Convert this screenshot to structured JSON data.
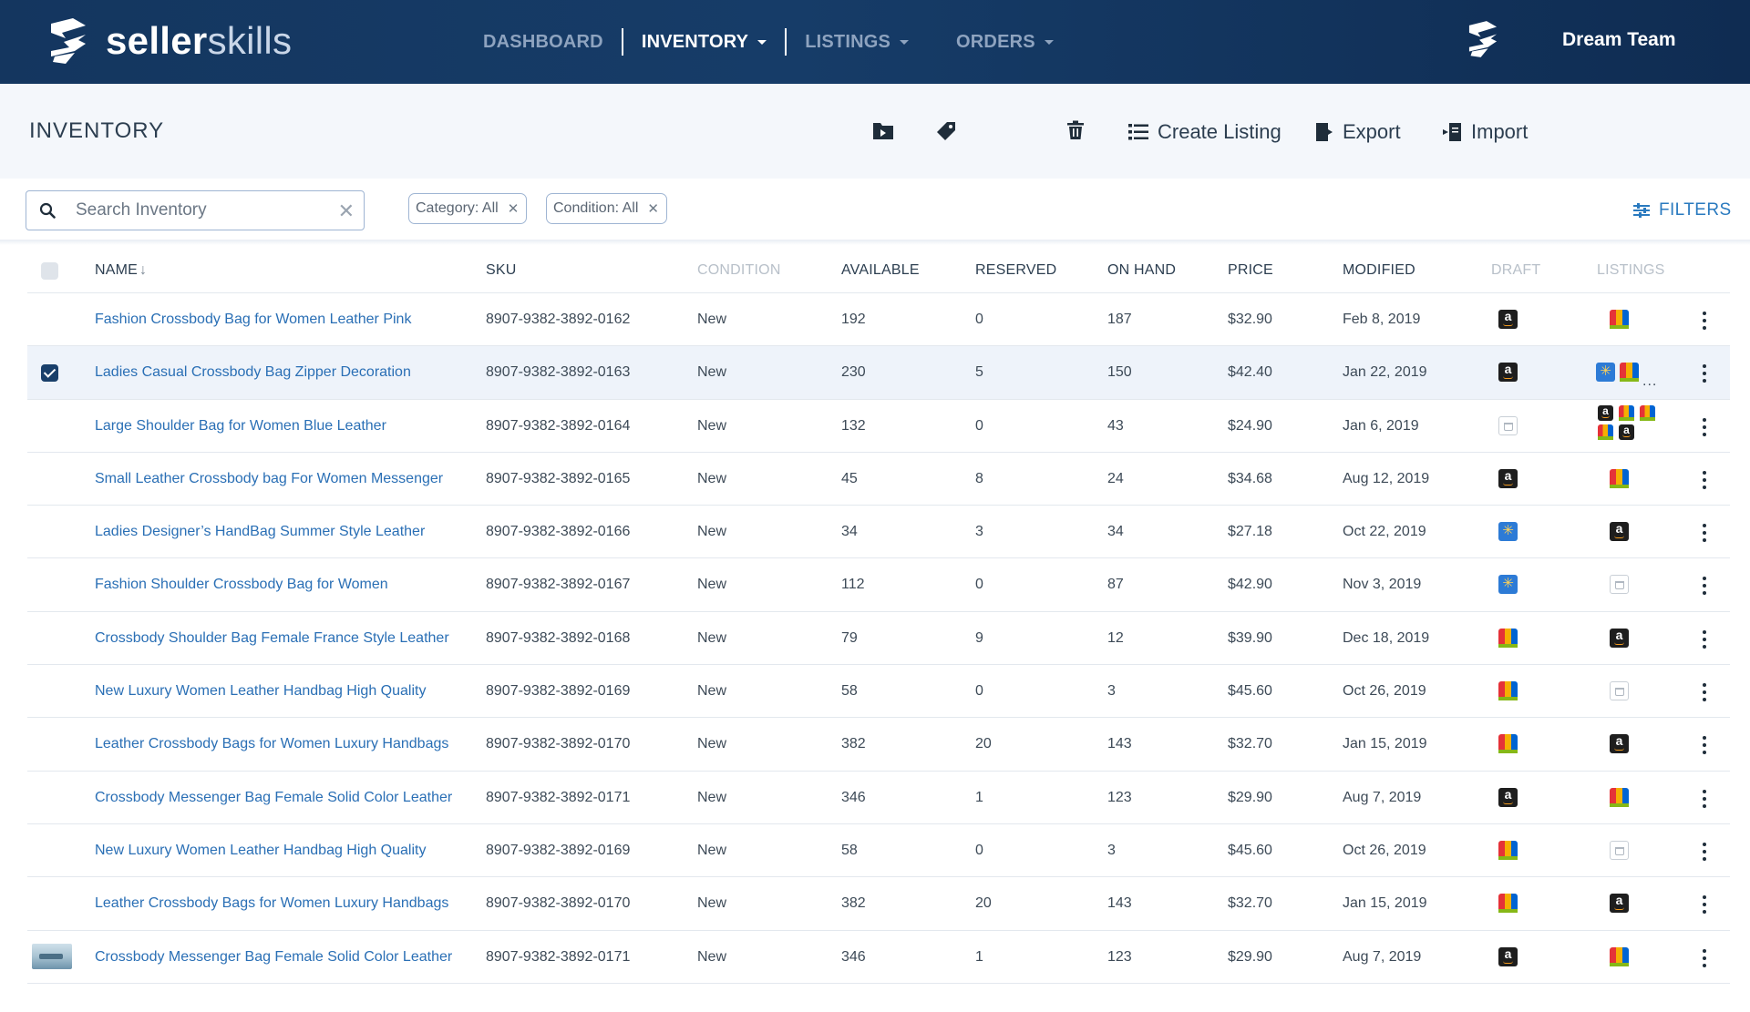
{
  "app": {
    "logo_bold": "seller",
    "logo_light": "skills",
    "team_name": "Dream Team"
  },
  "nav": {
    "dashboard": "DASHBOARD",
    "inventory": "INVENTORY",
    "listings": "LISTINGS",
    "orders": "ORDERS",
    "active": "inventory"
  },
  "toolbar": {
    "page_title": "INVENTORY",
    "create_listing_label": "Create Listing",
    "export_label": "Export",
    "import_label": "Import",
    "icons": [
      "folder-icon",
      "tag-icon",
      "trash-icon",
      "list-icon",
      "export-icon",
      "import-icon"
    ]
  },
  "search": {
    "placeholder": "Search Inventory",
    "value": ""
  },
  "filter_chips": [
    {
      "label": "Category: All"
    },
    {
      "label": "Condition: All"
    }
  ],
  "filters_label": "FILTERS",
  "table": {
    "columns": {
      "name": "NAME",
      "sku": "SKU",
      "condition": "CONDITION",
      "available": "AVAILABLE",
      "reserved": "RESERVED",
      "on_hand": "ON HAND",
      "price": "PRICE",
      "modified": "MODIFIED",
      "draft": "DRAFT",
      "listings": "LISTINGS"
    },
    "sort": {
      "column": "name",
      "direction": "down"
    },
    "rows": [
      {
        "name": "Fashion Crossbody Bag for Women Leather Pink",
        "sku": "8907-9382-3892-0162",
        "condition": "New",
        "available": "192",
        "reserved": "0",
        "on_hand": "187",
        "price": "$32.90",
        "modified": "Feb 8, 2019",
        "checked": false,
        "thumb": false,
        "draft": "amazon",
        "listings": [
          "ebay"
        ]
      },
      {
        "name": "Ladies Casual Crossbody Bag Zipper Decoration",
        "sku": "8907-9382-3892-0163",
        "condition": "New",
        "available": "230",
        "reserved": "5",
        "on_hand": "150",
        "price": "$42.40",
        "modified": "Jan 22, 2019",
        "checked": true,
        "thumb": false,
        "draft": "amazon",
        "listings": [
          "walmart",
          "ebay"
        ],
        "listings_more": "..."
      },
      {
        "name": "Large Shoulder Bag for Women Blue Leather",
        "sku": "8907-9382-3892-0164",
        "condition": "New",
        "available": "132",
        "reserved": "0",
        "on_hand": "43",
        "price": "$24.90",
        "modified": "Jan 6, 2019",
        "checked": false,
        "thumb": false,
        "draft": "shop",
        "listings": [
          "amazon",
          "ebay",
          "ebay",
          "ebay",
          "amazon"
        ]
      },
      {
        "name": "Small Leather Crossbody bag For Women Messenger",
        "sku": "8907-9382-3892-0165",
        "condition": "New",
        "available": "45",
        "reserved": "8",
        "on_hand": "24",
        "price": "$34.68",
        "modified": "Aug 12, 2019",
        "checked": false,
        "thumb": false,
        "draft": "amazon",
        "listings": [
          "ebay"
        ]
      },
      {
        "name": " Ladies Designer’s HandBag Summer Style Leather",
        "sku": "8907-9382-3892-0166",
        "condition": "New",
        "available": "34",
        "reserved": "3",
        "on_hand": "34",
        "price": "$27.18",
        "modified": "Oct 22, 2019",
        "checked": false,
        "thumb": false,
        "draft": "walmart",
        "listings": [
          "amazon"
        ]
      },
      {
        "name": "Fashion Shoulder Crossbody Bag for Women",
        "sku": "8907-9382-3892-0167",
        "condition": "New",
        "available": "112",
        "reserved": "0",
        "on_hand": "87",
        "price": "$42.90",
        "modified": "Nov 3, 2019",
        "checked": false,
        "thumb": false,
        "draft": "walmart",
        "listings": [
          "shop"
        ]
      },
      {
        "name": "Crossbody Shoulder Bag Female France Style Leather",
        "sku": "8907-9382-3892-0168",
        "condition": "New",
        "available": "79",
        "reserved": "9",
        "on_hand": "12",
        "price": "$39.90",
        "modified": "Dec 18, 2019",
        "checked": false,
        "thumb": false,
        "draft": "ebay",
        "listings": [
          "amazon"
        ]
      },
      {
        "name": "New Luxury Women Leather Handbag High Quality",
        "sku": "8907-9382-3892-0169",
        "condition": "New",
        "available": "58",
        "reserved": "0",
        "on_hand": "3",
        "price": "$45.60",
        "modified": "Oct 26, 2019",
        "checked": false,
        "thumb": false,
        "draft": "ebay",
        "listings": [
          "shop"
        ]
      },
      {
        "name": "Leather Crossbody Bags for Women Luxury Handbags",
        "sku": "8907-9382-3892-0170",
        "condition": "New",
        "available": "382",
        "reserved": "20",
        "on_hand": "143",
        "price": "$32.70",
        "modified": "Jan 15, 2019",
        "checked": false,
        "thumb": false,
        "draft": "ebay",
        "listings": [
          "amazon"
        ]
      },
      {
        "name": "Crossbody Messenger Bag Female Solid Color Leather",
        "sku": "8907-9382-3892-0171",
        "condition": "New",
        "available": "346",
        "reserved": "1",
        "on_hand": "123",
        "price": "$29.90",
        "modified": "Aug 7, 2019",
        "checked": false,
        "thumb": false,
        "draft": "amazon",
        "listings": [
          "ebay"
        ]
      },
      {
        "name": "New Luxury Women Leather Handbag High Quality",
        "sku": "8907-9382-3892-0169",
        "condition": "New",
        "available": "58",
        "reserved": "0",
        "on_hand": "3",
        "price": "$45.60",
        "modified": "Oct 26, 2019",
        "checked": false,
        "thumb": false,
        "draft": "ebay",
        "listings": [
          "shop"
        ]
      },
      {
        "name": "Leather Crossbody Bags for Women Luxury Handbags",
        "sku": "8907-9382-3892-0170",
        "condition": "New",
        "available": "382",
        "reserved": "20",
        "on_hand": "143",
        "price": "$32.70",
        "modified": "Jan 15, 2019",
        "checked": false,
        "thumb": false,
        "draft": "ebay",
        "listings": [
          "amazon"
        ]
      },
      {
        "name": "Crossbody Messenger Bag Female Solid Color Leather",
        "sku": "8907-9382-3892-0171",
        "condition": "New",
        "available": "346",
        "reserved": "1",
        "on_hand": "123",
        "price": "$29.90",
        "modified": "Aug 7, 2019",
        "checked": false,
        "thumb": true,
        "draft": "amazon",
        "listings": [
          "ebay"
        ]
      }
    ]
  },
  "colors": {
    "nav_bg": "#14365f",
    "link": "#2a6fb5",
    "accent_blue": "#2a7abf",
    "selected_row": "#eef3fa"
  }
}
